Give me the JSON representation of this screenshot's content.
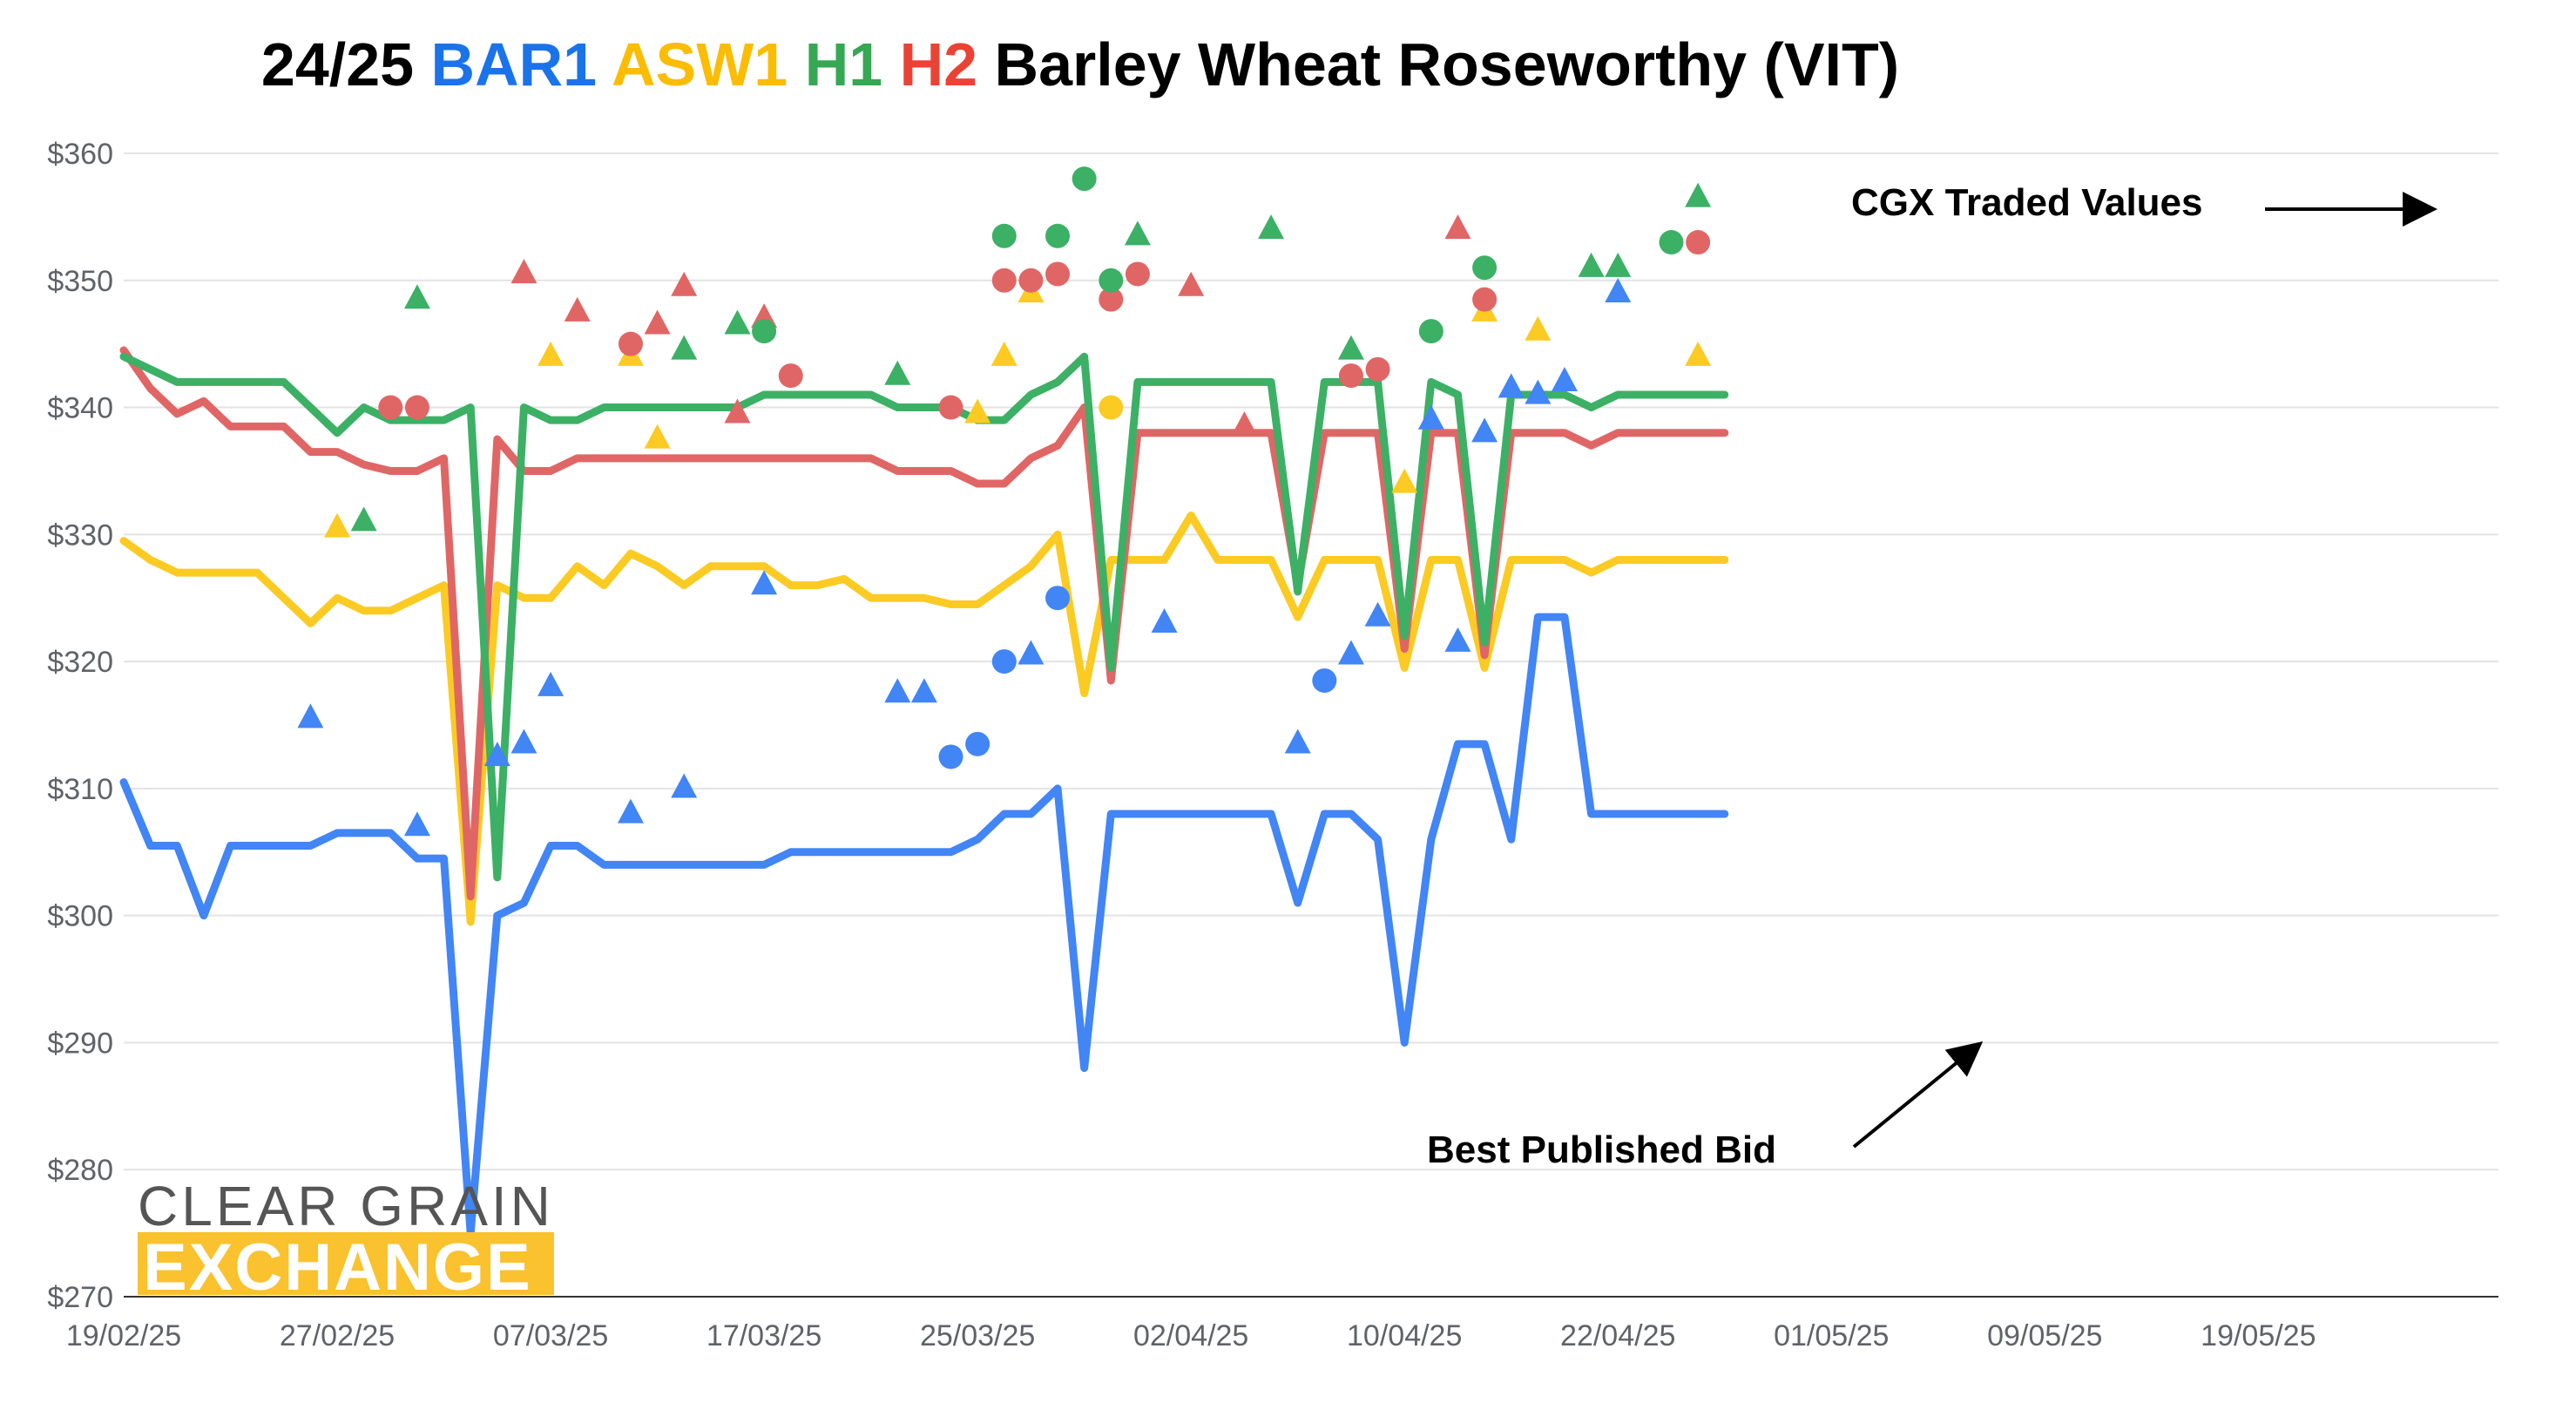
{
  "chart_data": {
    "type": "line",
    "title_parts": [
      {
        "text": "24/25 ",
        "color": "#000000"
      },
      {
        "text": "BAR1",
        "color": "#1a73e8"
      },
      {
        "text": " ",
        "color": "#000000"
      },
      {
        "text": "ASW1",
        "color": "#fbbc04"
      },
      {
        "text": " ",
        "color": "#000000"
      },
      {
        "text": "H1",
        "color": "#34a853"
      },
      {
        "text": " ",
        "color": "#000000"
      },
      {
        "text": "H2",
        "color": "#ea4335"
      },
      {
        "text": " Barley Wheat Roseworthy (VIT)",
        "color": "#000000"
      }
    ],
    "ylim": [
      270,
      360
    ],
    "yticks": [
      "$360",
      "$350",
      "$340",
      "$330",
      "$320",
      "$310",
      "$300",
      "$290",
      "$280",
      "$270"
    ],
    "ytick_values": [
      360,
      350,
      340,
      330,
      320,
      310,
      300,
      290,
      280,
      270
    ],
    "xlim": [
      0,
      89
    ],
    "xtick_labels": [
      "19/02/25",
      "27/02/25",
      "07/03/25",
      "17/03/25",
      "25/03/25",
      "02/04/25",
      "10/04/25",
      "22/04/25",
      "01/05/25",
      "09/05/25",
      "19/05/25"
    ],
    "xtick_positions": [
      0,
      8,
      16,
      24,
      32,
      40,
      48,
      56,
      64,
      72,
      80
    ],
    "grid": true,
    "x_index": [
      0,
      1,
      2,
      3,
      4,
      5,
      6,
      7,
      8,
      9,
      10,
      11,
      12,
      13,
      14,
      15,
      16,
      17,
      18,
      19,
      20,
      21,
      22,
      23,
      24,
      25,
      26,
      27,
      28,
      29,
      30,
      31,
      32,
      33,
      34,
      35,
      36,
      37,
      38,
      39,
      40,
      41,
      42,
      43,
      44,
      45,
      46,
      47,
      48,
      49,
      50,
      51,
      52,
      53,
      54,
      55,
      56,
      57,
      58,
      59,
      60
    ],
    "series": [
      {
        "key": "BAR1",
        "color": "#4285f4",
        "values": [
          310.5,
          305.5,
          305.5,
          300,
          305.5,
          305.5,
          305.5,
          305.5,
          306.5,
          306.5,
          306.5,
          304.5,
          304.5,
          275,
          300,
          301,
          305.5,
          305.5,
          304,
          304,
          304,
          304,
          304,
          304,
          304,
          305,
          305,
          305,
          305,
          305,
          305,
          305,
          306,
          308,
          308,
          310,
          288,
          308,
          308,
          308,
          308,
          308,
          308,
          308,
          301,
          308,
          308,
          306,
          290,
          306,
          313.5,
          313.5,
          306,
          323.5,
          323.5,
          308,
          308,
          308,
          308,
          308,
          308
        ]
      },
      {
        "key": "ASW1",
        "color": "#fbcb23",
        "values": [
          329.5,
          328,
          327,
          327,
          327,
          327,
          325,
          323,
          325,
          324,
          324,
          325,
          326,
          299.5,
          326,
          325,
          325,
          327.5,
          326,
          328.5,
          327.5,
          326,
          327.5,
          327.5,
          327.5,
          326,
          326,
          326.5,
          325,
          325,
          325,
          324.5,
          324.5,
          326,
          327.5,
          330,
          317.5,
          328,
          328,
          328,
          331.5,
          328,
          328,
          328,
          323.5,
          328,
          328,
          328,
          319.5,
          328,
          328,
          319.5,
          328,
          328,
          328,
          327,
          328,
          328,
          328,
          328,
          328
        ]
      },
      {
        "key": "H2",
        "color": "#e06666",
        "values": [
          344.5,
          341.5,
          339.5,
          340.5,
          338.5,
          338.5,
          338.5,
          336.5,
          336.5,
          335.5,
          335,
          335,
          336,
          301.5,
          337.5,
          335,
          335,
          336,
          336,
          336,
          336,
          336,
          336,
          336,
          336,
          336,
          336,
          336,
          336,
          335,
          335,
          335,
          334,
          334,
          336,
          337,
          340,
          318.5,
          338,
          338,
          338,
          338,
          338,
          338,
          326,
          338,
          338,
          338,
          321,
          338,
          338,
          320.5,
          338,
          338,
          338,
          337,
          338,
          338,
          338,
          338,
          338
        ]
      },
      {
        "key": "H1",
        "color": "#3cb065",
        "values": [
          344,
          343,
          342,
          342,
          342,
          342,
          342,
          340,
          338,
          340,
          339,
          339,
          339,
          340,
          303,
          340,
          339,
          339,
          340,
          340,
          340,
          340,
          340,
          340,
          341,
          341,
          341,
          341,
          341,
          340,
          340,
          340,
          339,
          339,
          341,
          342,
          344,
          319.5,
          342,
          342,
          342,
          342,
          342,
          342,
          325.5,
          342,
          342,
          342,
          322,
          342,
          341,
          321.5,
          341,
          341,
          341,
          340,
          341,
          341,
          341,
          341,
          341
        ]
      }
    ],
    "traded_points": [
      {
        "series": "BAR1",
        "marker": "triangle",
        "x": 7,
        "y": 315.5
      },
      {
        "series": "BAR1",
        "marker": "triangle",
        "x": 11,
        "y": 307
      },
      {
        "series": "BAR1",
        "marker": "triangle",
        "x": 14,
        "y": 312.5
      },
      {
        "series": "BAR1",
        "marker": "triangle",
        "x": 15,
        "y": 313.5
      },
      {
        "series": "BAR1",
        "marker": "triangle",
        "x": 16,
        "y": 318
      },
      {
        "series": "BAR1",
        "marker": "triangle",
        "x": 19,
        "y": 308
      },
      {
        "series": "BAR1",
        "marker": "triangle",
        "x": 21,
        "y": 310
      },
      {
        "series": "BAR1",
        "marker": "triangle",
        "x": 24,
        "y": 326
      },
      {
        "series": "BAR1",
        "marker": "triangle",
        "x": 29,
        "y": 317.5
      },
      {
        "series": "BAR1",
        "marker": "triangle",
        "x": 30,
        "y": 317.5
      },
      {
        "series": "BAR1",
        "marker": "circle",
        "x": 31,
        "y": 312.5
      },
      {
        "series": "BAR1",
        "marker": "circle",
        "x": 32,
        "y": 313.5
      },
      {
        "series": "BAR1",
        "marker": "circle",
        "x": 33,
        "y": 320
      },
      {
        "series": "BAR1",
        "marker": "triangle",
        "x": 34,
        "y": 320.5
      },
      {
        "series": "BAR1",
        "marker": "circle",
        "x": 35,
        "y": 325
      },
      {
        "series": "BAR1",
        "marker": "triangle",
        "x": 39,
        "y": 323
      },
      {
        "series": "BAR1",
        "marker": "triangle",
        "x": 44,
        "y": 313.5
      },
      {
        "series": "BAR1",
        "marker": "circle",
        "x": 45,
        "y": 318.5
      },
      {
        "series": "BAR1",
        "marker": "triangle",
        "x": 46,
        "y": 320.5
      },
      {
        "series": "BAR1",
        "marker": "triangle",
        "x": 47,
        "y": 323.5
      },
      {
        "series": "BAR1",
        "marker": "triangle",
        "x": 49,
        "y": 339
      },
      {
        "series": "BAR1",
        "marker": "triangle",
        "x": 50,
        "y": 321.5
      },
      {
        "series": "BAR1",
        "marker": "triangle",
        "x": 51,
        "y": 338
      },
      {
        "series": "BAR1",
        "marker": "triangle",
        "x": 52,
        "y": 341.5
      },
      {
        "series": "BAR1",
        "marker": "triangle",
        "x": 53,
        "y": 341
      },
      {
        "series": "BAR1",
        "marker": "triangle",
        "x": 54,
        "y": 342
      },
      {
        "series": "BAR1",
        "marker": "triangle",
        "x": 56,
        "y": 349
      },
      {
        "series": "ASW1",
        "marker": "triangle",
        "x": 8,
        "y": 330.5
      },
      {
        "series": "ASW1",
        "marker": "triangle",
        "x": 16,
        "y": 344
      },
      {
        "series": "ASW1",
        "marker": "triangle",
        "x": 19,
        "y": 344
      },
      {
        "series": "ASW1",
        "marker": "triangle",
        "x": 20,
        "y": 337.5
      },
      {
        "series": "ASW1",
        "marker": "triangle",
        "x": 32,
        "y": 339.5
      },
      {
        "series": "ASW1",
        "marker": "triangle",
        "x": 33,
        "y": 344
      },
      {
        "series": "ASW1",
        "marker": "triangle",
        "x": 34,
        "y": 349
      },
      {
        "series": "ASW1",
        "marker": "circle",
        "x": 37,
        "y": 340
      },
      {
        "series": "ASW1",
        "marker": "triangle",
        "x": 48,
        "y": 334
      },
      {
        "series": "ASW1",
        "marker": "triangle",
        "x": 51,
        "y": 347.5
      },
      {
        "series": "ASW1",
        "marker": "triangle",
        "x": 53,
        "y": 346
      },
      {
        "series": "ASW1",
        "marker": "triangle",
        "x": 59,
        "y": 344
      },
      {
        "series": "H2",
        "marker": "circle",
        "x": 10,
        "y": 340
      },
      {
        "series": "H2",
        "marker": "circle",
        "x": 11,
        "y": 340
      },
      {
        "series": "H2",
        "marker": "triangle",
        "x": 15,
        "y": 350.5
      },
      {
        "series": "H2",
        "marker": "triangle",
        "x": 17,
        "y": 347.5
      },
      {
        "series": "H2",
        "marker": "circle",
        "x": 19,
        "y": 345
      },
      {
        "series": "H2",
        "marker": "triangle",
        "x": 20,
        "y": 346.5
      },
      {
        "series": "H2",
        "marker": "triangle",
        "x": 21,
        "y": 349.5
      },
      {
        "series": "H2",
        "marker": "triangle",
        "x": 23,
        "y": 339.5
      },
      {
        "series": "H2",
        "marker": "triangle",
        "x": 24,
        "y": 347
      },
      {
        "series": "H2",
        "marker": "circle",
        "x": 25,
        "y": 342.5
      },
      {
        "series": "H2",
        "marker": "circle",
        "x": 31,
        "y": 340
      },
      {
        "series": "H2",
        "marker": "circle",
        "x": 33,
        "y": 350
      },
      {
        "series": "H2",
        "marker": "circle",
        "x": 34,
        "y": 350
      },
      {
        "series": "H2",
        "marker": "circle",
        "x": 35,
        "y": 350.5
      },
      {
        "series": "H2",
        "marker": "circle",
        "x": 37,
        "y": 348.5
      },
      {
        "series": "H2",
        "marker": "circle",
        "x": 38,
        "y": 350.5
      },
      {
        "series": "H2",
        "marker": "triangle",
        "x": 40,
        "y": 349.5
      },
      {
        "series": "H2",
        "marker": "triangle",
        "x": 42,
        "y": 338.5
      },
      {
        "series": "H2",
        "marker": "circle",
        "x": 46,
        "y": 342.5
      },
      {
        "series": "H2",
        "marker": "circle",
        "x": 47,
        "y": 343
      },
      {
        "series": "H2",
        "marker": "triangle",
        "x": 50,
        "y": 354
      },
      {
        "series": "H2",
        "marker": "circle",
        "x": 51,
        "y": 348.5
      },
      {
        "series": "H2",
        "marker": "circle",
        "x": 59,
        "y": 353
      },
      {
        "series": "H1",
        "marker": "triangle",
        "x": 9,
        "y": 331
      },
      {
        "series": "H1",
        "marker": "triangle",
        "x": 11,
        "y": 348.5
      },
      {
        "series": "H1",
        "marker": "triangle",
        "x": 21,
        "y": 344.5
      },
      {
        "series": "H1",
        "marker": "triangle",
        "x": 23,
        "y": 346.5
      },
      {
        "series": "H1",
        "marker": "circle",
        "x": 24,
        "y": 346
      },
      {
        "series": "H1",
        "marker": "triangle",
        "x": 29,
        "y": 342.5
      },
      {
        "series": "H1",
        "marker": "circle",
        "x": 33,
        "y": 353.5
      },
      {
        "series": "H1",
        "marker": "circle",
        "x": 35,
        "y": 353.5
      },
      {
        "series": "H1",
        "marker": "circle",
        "x": 36,
        "y": 358
      },
      {
        "series": "H1",
        "marker": "circle",
        "x": 37,
        "y": 350
      },
      {
        "series": "H1",
        "marker": "triangle",
        "x": 38,
        "y": 353.5
      },
      {
        "series": "H1",
        "marker": "triangle",
        "x": 43,
        "y": 354
      },
      {
        "series": "H1",
        "marker": "triangle",
        "x": 46,
        "y": 344.5
      },
      {
        "series": "H1",
        "marker": "circle",
        "x": 49,
        "y": 346
      },
      {
        "series": "H1",
        "marker": "circle",
        "x": 51,
        "y": 351
      },
      {
        "series": "H1",
        "marker": "triangle",
        "x": 55,
        "y": 351
      },
      {
        "series": "H1",
        "marker": "triangle",
        "x": 56,
        "y": 351
      },
      {
        "series": "H1",
        "marker": "circle",
        "x": 58,
        "y": 353
      },
      {
        "series": "H1",
        "marker": "triangle",
        "x": 59,
        "y": 356.5
      }
    ],
    "annotations": [
      {
        "text": "CGX Traded Values",
        "arrow": "right"
      },
      {
        "text": "Best Published Bid",
        "arrow": "up-right"
      }
    ]
  },
  "logo": {
    "line1": "CLEAR GRAIN",
    "line2": "EXCHANGE",
    "colors": {
      "text": "#555555",
      "band": "#f9c22e"
    }
  }
}
